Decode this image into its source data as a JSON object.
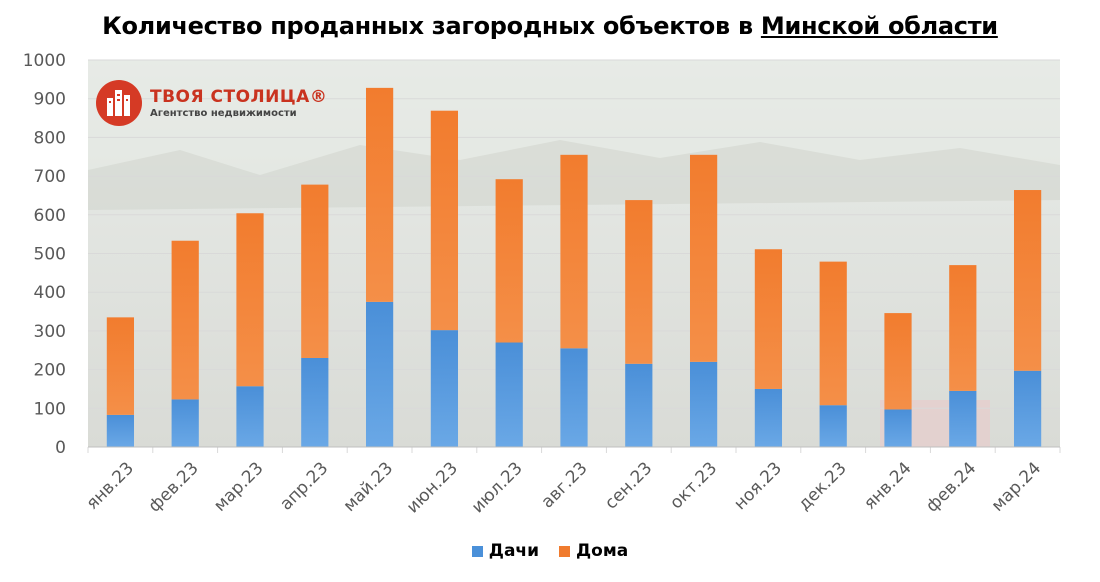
{
  "title_main": "Количество проданных загородных объектов в ",
  "title_underlined": "Минской области",
  "logo": {
    "brand": "ТВОЯ СТОЛИЦА®",
    "tagline": "Агентство недвижимости"
  },
  "colors": {
    "dachi": "#4a90d9",
    "doma": "#f07b2e",
    "grid": "#d9d9d9",
    "axis_text": "#595959"
  },
  "chart_data": {
    "type": "bar",
    "stacked": true,
    "categories": [
      "янв.23",
      "фев.23",
      "мар.23",
      "апр.23",
      "май.23",
      "июн.23",
      "июл.23",
      "авг.23",
      "сен.23",
      "окт.23",
      "ноя.23",
      "дек.23",
      "янв.24",
      "фев.24",
      "мар.24"
    ],
    "series": [
      {
        "name": "Дачи",
        "values": [
          83,
          123,
          157,
          230,
          375,
          302,
          270,
          255,
          215,
          220,
          150,
          108,
          97,
          145,
          197
        ]
      },
      {
        "name": "Дома",
        "values": [
          252,
          410,
          447,
          448,
          553,
          567,
          422,
          500,
          423,
          535,
          361,
          371,
          249,
          325,
          467
        ]
      }
    ],
    "title": "Количество проданных загородных объектов в Минской области",
    "ylim": [
      0,
      1000
    ],
    "yticks": [
      0,
      100,
      200,
      300,
      400,
      500,
      600,
      700,
      800,
      900,
      1000
    ],
    "grid": true,
    "legend": "bottom"
  }
}
